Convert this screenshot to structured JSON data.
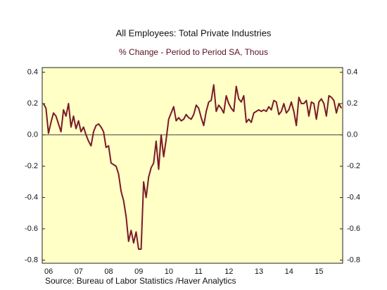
{
  "chart_data": {
    "type": "line",
    "title": "All Employees: Total Private Industries",
    "subtitle": "% Change - Period to Period    SA, Thous",
    "source": "Source:  Bureau of Labor Statistics /Haver Analytics",
    "categories": [
      "06",
      null,
      null,
      null,
      null,
      null,
      null,
      null,
      null,
      null,
      null,
      null,
      "07",
      null,
      null,
      null,
      null,
      null,
      null,
      null,
      null,
      null,
      null,
      null,
      "08",
      null,
      null,
      null,
      null,
      null,
      null,
      null,
      null,
      null,
      null,
      null,
      "09",
      null,
      null,
      null,
      null,
      null,
      null,
      null,
      null,
      null,
      null,
      null,
      "10",
      null,
      null,
      null,
      null,
      null,
      null,
      null,
      null,
      null,
      null,
      null,
      "11",
      null,
      null,
      null,
      null,
      null,
      null,
      null,
      null,
      null,
      null,
      null,
      "12",
      null,
      null,
      null,
      null,
      null,
      null,
      null,
      null,
      null,
      null,
      null,
      "13",
      null,
      null,
      null,
      null,
      null,
      null,
      null,
      null,
      null,
      null,
      null,
      "14",
      null,
      null,
      null,
      null,
      null,
      null,
      null,
      null,
      null,
      null,
      null,
      "15",
      null,
      null,
      null,
      null,
      null,
      null,
      null,
      null,
      null,
      null,
      null
    ],
    "series": [
      {
        "color": "#7a1a2a",
        "values": [
          0.2,
          0.17,
          0.01,
          0.08,
          0.14,
          0.12,
          0.07,
          0.02,
          0.16,
          0.12,
          0.2,
          0.05,
          0.12,
          0.04,
          0.09,
          0.02,
          0.05,
          0.0,
          -0.04,
          -0.07,
          0.02,
          0.06,
          0.07,
          0.05,
          0.02,
          -0.08,
          -0.07,
          -0.18,
          -0.19,
          -0.2,
          -0.25,
          -0.36,
          -0.42,
          -0.52,
          -0.68,
          -0.61,
          -0.69,
          -0.62,
          -0.73,
          -0.73,
          -0.3,
          -0.4,
          -0.27,
          -0.21,
          -0.18,
          -0.04,
          -0.22,
          0.0,
          -0.14,
          -0.03,
          0.1,
          0.14,
          0.18,
          0.09,
          0.11,
          0.09,
          0.1,
          0.13,
          0.11,
          0.1,
          0.13,
          0.19,
          0.17,
          0.11,
          0.06,
          0.15,
          0.21,
          0.22,
          0.32,
          0.15,
          0.19,
          0.17,
          0.14,
          0.25,
          0.2,
          0.17,
          0.15,
          0.31,
          0.23,
          0.21,
          0.25,
          0.08,
          0.1,
          0.08,
          0.14,
          0.15,
          0.16,
          0.15,
          0.16,
          0.15,
          0.18,
          0.16,
          0.22,
          0.21,
          0.13,
          0.15,
          0.2,
          0.14,
          0.16,
          0.21,
          0.15,
          0.06,
          0.24,
          0.2,
          0.2,
          0.22,
          0.12,
          0.21,
          0.2,
          0.1,
          0.21,
          0.23,
          0.2,
          0.12,
          0.25,
          0.24,
          0.22,
          0.14,
          0.2,
          0.17
        ]
      }
    ],
    "ylim": [
      -0.82,
      0.43
    ],
    "yticks": [
      0.4,
      0.2,
      {
        "value": 0,
        "label": "0.0"
      },
      -0.2,
      -0.4,
      -0.6,
      -0.8
    ],
    "zero_line": true,
    "background": "#ffffc6"
  }
}
